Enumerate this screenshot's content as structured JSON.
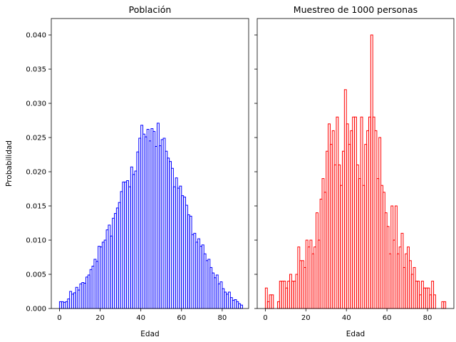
{
  "chart_data": [
    {
      "type": "bar",
      "title": "Población",
      "xlabel": "Edad",
      "ylabel": "Probabilidad",
      "xlim": [
        -4,
        93
      ],
      "ylim": [
        0,
        0.0424
      ],
      "xticks": [
        0,
        20,
        40,
        60,
        80
      ],
      "yticks": [
        0,
        0.005,
        0.01,
        0.015,
        0.02,
        0.025,
        0.03,
        0.035,
        0.04
      ],
      "ytick_labels": [
        "0.000",
        "0.005",
        "0.010",
        "0.015",
        "0.020",
        "0.025",
        "0.030",
        "0.035",
        "0.040"
      ],
      "grid": false,
      "color": "#0000ff",
      "bin_width": 1,
      "x": [
        0,
        1,
        2,
        3,
        4,
        5,
        6,
        7,
        8,
        9,
        10,
        11,
        12,
        13,
        14,
        15,
        16,
        17,
        18,
        19,
        20,
        21,
        22,
        23,
        24,
        25,
        26,
        27,
        28,
        29,
        30,
        31,
        32,
        33,
        34,
        35,
        36,
        37,
        38,
        39,
        40,
        41,
        42,
        43,
        44,
        45,
        46,
        47,
        48,
        49,
        50,
        51,
        52,
        53,
        54,
        55,
        56,
        57,
        58,
        59,
        60,
        61,
        62,
        63,
        64,
        65,
        66,
        67,
        68,
        69,
        70,
        71,
        72,
        73,
        74,
        75,
        76,
        77,
        78,
        79,
        80,
        81,
        82,
        83,
        84,
        85,
        86,
        87,
        88,
        89
      ],
      "values": [
        0.001,
        0.001,
        0.0009,
        0.001,
        0.0014,
        0.0025,
        0.0021,
        0.0023,
        0.0031,
        0.0027,
        0.0036,
        0.0038,
        0.0037,
        0.0046,
        0.0049,
        0.0057,
        0.0062,
        0.0072,
        0.0069,
        0.0091,
        0.009,
        0.0097,
        0.01,
        0.0115,
        0.0122,
        0.0106,
        0.0132,
        0.0139,
        0.0147,
        0.0155,
        0.0171,
        0.0185,
        0.0185,
        0.0187,
        0.0178,
        0.0207,
        0.0196,
        0.0201,
        0.0229,
        0.0249,
        0.0268,
        0.0255,
        0.0251,
        0.0262,
        0.0245,
        0.0263,
        0.0259,
        0.0237,
        0.0271,
        0.0238,
        0.0247,
        0.0249,
        0.023,
        0.022,
        0.0215,
        0.0205,
        0.0178,
        0.0191,
        0.0176,
        0.0179,
        0.0165,
        0.0163,
        0.0151,
        0.0137,
        0.0135,
        0.0108,
        0.011,
        0.0097,
        0.0102,
        0.0091,
        0.0093,
        0.008,
        0.007,
        0.0072,
        0.006,
        0.0052,
        0.0045,
        0.0049,
        0.0036,
        0.0039,
        0.0029,
        0.0024,
        0.0021,
        0.0024,
        0.0016,
        0.0012,
        0.0013,
        0.001,
        0.0007,
        0.0005
      ]
    },
    {
      "type": "bar",
      "title": "Muestreo de 1000 personas",
      "xlabel": "Edad",
      "ylabel": "",
      "xlim": [
        -4,
        93
      ],
      "ylim": [
        0,
        0.0424
      ],
      "xticks": [
        0,
        20,
        40,
        60,
        80
      ],
      "grid": false,
      "color": "#ff0000",
      "bin_width": 1,
      "x": [
        0,
        1,
        2,
        3,
        4,
        5,
        6,
        7,
        8,
        9,
        10,
        11,
        12,
        13,
        14,
        15,
        16,
        17,
        18,
        19,
        20,
        21,
        22,
        23,
        24,
        25,
        26,
        27,
        28,
        29,
        30,
        31,
        32,
        33,
        34,
        35,
        36,
        37,
        38,
        39,
        40,
        41,
        42,
        43,
        44,
        45,
        46,
        47,
        48,
        49,
        50,
        51,
        52,
        53,
        54,
        55,
        56,
        57,
        58,
        59,
        60,
        61,
        62,
        63,
        64,
        65,
        66,
        67,
        68,
        69,
        70,
        71,
        72,
        73,
        74,
        75,
        76,
        77,
        78,
        79,
        80,
        81,
        82,
        83,
        84,
        85,
        86,
        87,
        88,
        89
      ],
      "values": [
        0.003,
        0.001,
        0.002,
        0.002,
        0,
        0,
        0.001,
        0.004,
        0.004,
        0.004,
        0.003,
        0.004,
        0.005,
        0.004,
        0.004,
        0.005,
        0.009,
        0.007,
        0.007,
        0.006,
        0.01,
        0.009,
        0.01,
        0.008,
        0.009,
        0.014,
        0.01,
        0.016,
        0.019,
        0.017,
        0.023,
        0.027,
        0.024,
        0.026,
        0.021,
        0.028,
        0.021,
        0.018,
        0.023,
        0.032,
        0.027,
        0.024,
        0.026,
        0.028,
        0.028,
        0.021,
        0.019,
        0.028,
        0.018,
        0.024,
        0.026,
        0.028,
        0.04,
        0.028,
        0.026,
        0.019,
        0.025,
        0.018,
        0.017,
        0.014,
        0.012,
        0.008,
        0.015,
        0.01,
        0.015,
        0.008,
        0.009,
        0.011,
        0.006,
        0.008,
        0.009,
        0.007,
        0.005,
        0.006,
        0.004,
        0.004,
        0.002,
        0.004,
        0.003,
        0.003,
        0.003,
        0.002,
        0.004,
        0.002,
        0,
        0,
        0,
        0.001,
        0.001,
        0
      ]
    }
  ]
}
